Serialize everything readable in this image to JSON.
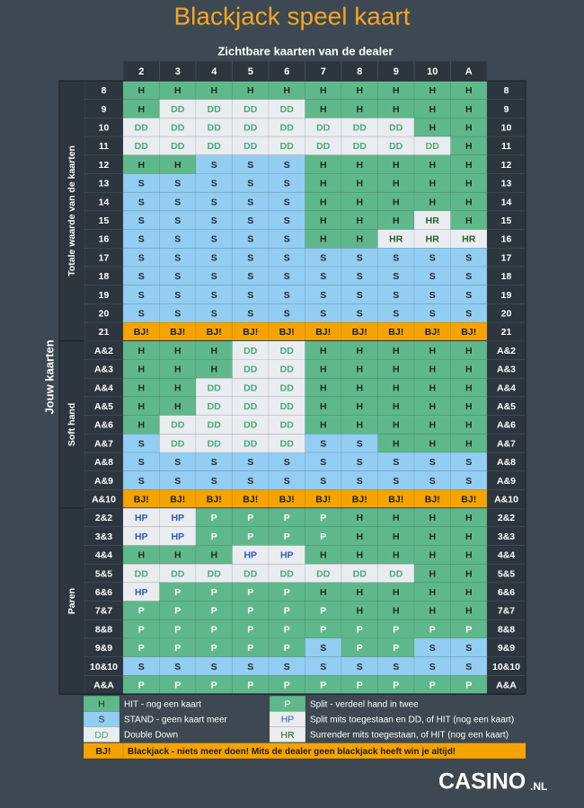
{
  "title": "Blackjack speel kaart",
  "dealer_label": "Zichtbare kaarten van de dealer",
  "dealer_cards": [
    "2",
    "3",
    "4",
    "5",
    "6",
    "7",
    "8",
    "9",
    "10",
    "A"
  ],
  "player_label": "Jouw kaarten",
  "groups": [
    {
      "label": "Totale waarde van de kaarten",
      "rows": [
        {
          "hand": "8",
          "cells": [
            "H",
            "H",
            "H",
            "H",
            "H",
            "H",
            "H",
            "H",
            "H",
            "H"
          ]
        },
        {
          "hand": "9",
          "cells": [
            "H",
            "DD",
            "DD",
            "DD",
            "DD",
            "H",
            "H",
            "H",
            "H",
            "H"
          ]
        },
        {
          "hand": "10",
          "cells": [
            "DD",
            "DD",
            "DD",
            "DD",
            "DD",
            "DD",
            "DD",
            "DD",
            "H",
            "H"
          ]
        },
        {
          "hand": "11",
          "cells": [
            "DD",
            "DD",
            "DD",
            "DD",
            "DD",
            "DD",
            "DD",
            "DD",
            "DD",
            "H"
          ]
        },
        {
          "hand": "12",
          "cells": [
            "H",
            "H",
            "S",
            "S",
            "S",
            "H",
            "H",
            "H",
            "H",
            "H"
          ]
        },
        {
          "hand": "13",
          "cells": [
            "S",
            "S",
            "S",
            "S",
            "S",
            "H",
            "H",
            "H",
            "H",
            "H"
          ]
        },
        {
          "hand": "14",
          "cells": [
            "S",
            "S",
            "S",
            "S",
            "S",
            "H",
            "H",
            "H",
            "H",
            "H"
          ]
        },
        {
          "hand": "15",
          "cells": [
            "S",
            "S",
            "S",
            "S",
            "S",
            "H",
            "H",
            "H",
            "HR",
            "H"
          ]
        },
        {
          "hand": "16",
          "cells": [
            "S",
            "S",
            "S",
            "S",
            "S",
            "H",
            "H",
            "HR",
            "HR",
            "HR"
          ]
        },
        {
          "hand": "17",
          "cells": [
            "S",
            "S",
            "S",
            "S",
            "S",
            "S",
            "S",
            "S",
            "S",
            "S"
          ]
        },
        {
          "hand": "18",
          "cells": [
            "S",
            "S",
            "S",
            "S",
            "S",
            "S",
            "S",
            "S",
            "S",
            "S"
          ]
        },
        {
          "hand": "19",
          "cells": [
            "S",
            "S",
            "S",
            "S",
            "S",
            "S",
            "S",
            "S",
            "S",
            "S"
          ]
        },
        {
          "hand": "20",
          "cells": [
            "S",
            "S",
            "S",
            "S",
            "S",
            "S",
            "S",
            "S",
            "S",
            "S"
          ]
        },
        {
          "hand": "21",
          "cells": [
            "BJ!",
            "BJ!",
            "BJ!",
            "BJ!",
            "BJ!",
            "BJ!",
            "BJ!",
            "BJ!",
            "BJ!",
            "BJ!"
          ]
        }
      ]
    },
    {
      "label": "Soft hand",
      "rows": [
        {
          "hand": "A&2",
          "cells": [
            "H",
            "H",
            "H",
            "DD",
            "DD",
            "H",
            "H",
            "H",
            "H",
            "H"
          ]
        },
        {
          "hand": "A&3",
          "cells": [
            "H",
            "H",
            "H",
            "DD",
            "DD",
            "H",
            "H",
            "H",
            "H",
            "H"
          ]
        },
        {
          "hand": "A&4",
          "cells": [
            "H",
            "H",
            "DD",
            "DD",
            "DD",
            "H",
            "H",
            "H",
            "H",
            "H"
          ]
        },
        {
          "hand": "A&5",
          "cells": [
            "H",
            "H",
            "DD",
            "DD",
            "DD",
            "H",
            "H",
            "H",
            "H",
            "H"
          ]
        },
        {
          "hand": "A&6",
          "cells": [
            "H",
            "DD",
            "DD",
            "DD",
            "DD",
            "H",
            "H",
            "H",
            "H",
            "H"
          ]
        },
        {
          "hand": "A&7",
          "cells": [
            "S",
            "DD",
            "DD",
            "DD",
            "DD",
            "S",
            "S",
            "H",
            "H",
            "H"
          ]
        },
        {
          "hand": "A&8",
          "cells": [
            "S",
            "S",
            "S",
            "S",
            "S",
            "S",
            "S",
            "S",
            "S",
            "S"
          ]
        },
        {
          "hand": "A&9",
          "cells": [
            "S",
            "S",
            "S",
            "S",
            "S",
            "S",
            "S",
            "S",
            "S",
            "S"
          ]
        },
        {
          "hand": "A&10",
          "cells": [
            "BJ!",
            "BJ!",
            "BJ!",
            "BJ!",
            "BJ!",
            "BJ!",
            "BJ!",
            "BJ!",
            "BJ!",
            "BJ!"
          ]
        }
      ]
    },
    {
      "label": "Paren",
      "rows": [
        {
          "hand": "2&2",
          "cells": [
            "HP",
            "HP",
            "P",
            "P",
            "P",
            "P",
            "H",
            "H",
            "H",
            "H"
          ]
        },
        {
          "hand": "3&3",
          "cells": [
            "HP",
            "HP",
            "P",
            "P",
            "P",
            "P",
            "H",
            "H",
            "H",
            "H"
          ]
        },
        {
          "hand": "4&4",
          "cells": [
            "H",
            "H",
            "H",
            "HP",
            "HP",
            "H",
            "H",
            "H",
            "H",
            "H"
          ]
        },
        {
          "hand": "5&5",
          "cells": [
            "DD",
            "DD",
            "DD",
            "DD",
            "DD",
            "DD",
            "DD",
            "DD",
            "H",
            "H"
          ]
        },
        {
          "hand": "6&6",
          "cells": [
            "HP",
            "P",
            "P",
            "P",
            "P",
            "H",
            "H",
            "H",
            "H",
            "H"
          ]
        },
        {
          "hand": "7&7",
          "cells": [
            "P",
            "P",
            "P",
            "P",
            "P",
            "P",
            "H",
            "H",
            "H",
            "H"
          ]
        },
        {
          "hand": "8&8",
          "cells": [
            "P",
            "P",
            "P",
            "P",
            "P",
            "P",
            "P",
            "P",
            "P",
            "P"
          ]
        },
        {
          "hand": "9&9",
          "cells": [
            "P",
            "P",
            "P",
            "P",
            "P",
            "S",
            "P",
            "P",
            "S",
            "S"
          ]
        },
        {
          "hand": "10&10",
          "cells": [
            "S",
            "S",
            "S",
            "S",
            "S",
            "S",
            "S",
            "S",
            "S",
            "S"
          ]
        },
        {
          "hand": "A&A",
          "cells": [
            "P",
            "P",
            "P",
            "P",
            "P",
            "P",
            "P",
            "P",
            "P",
            "P"
          ]
        }
      ]
    }
  ],
  "legend": [
    {
      "code": "H",
      "text": "HIT - nog een kaart",
      "bg": "#5fb88b",
      "fg": "#1f2a22"
    },
    {
      "code": "S",
      "text": "STAND - geen kaart meer",
      "bg": "#93cdf2",
      "fg": "#1f2a30"
    },
    {
      "code": "DD",
      "text": "Double Down",
      "bg": "#e9edef",
      "fg": "#4aa87a"
    },
    {
      "code": "P",
      "text": "Split - verdeel hand in twee",
      "bg": "#5fb88b",
      "fg": "#ffffff"
    },
    {
      "code": "HP",
      "text": "Split mits toegestaan en DD, of HIT (nog een kaart)",
      "bg": "#e9edef",
      "fg": "#3457b0"
    },
    {
      "code": "HR",
      "text": "Surrender mits toegestaan, of HIT (nog een kaart)",
      "bg": "#e9edef",
      "fg": "#2f5a2a"
    },
    {
      "code": "BJ!",
      "text": "Blackjack - niets meer doen! Mits de dealer geen blackjack heeft win je altijd!",
      "bg": "#f5a300",
      "fg": "#1e1e1e"
    }
  ],
  "brand": "CASINO",
  "brand_suffix": ".NL"
}
